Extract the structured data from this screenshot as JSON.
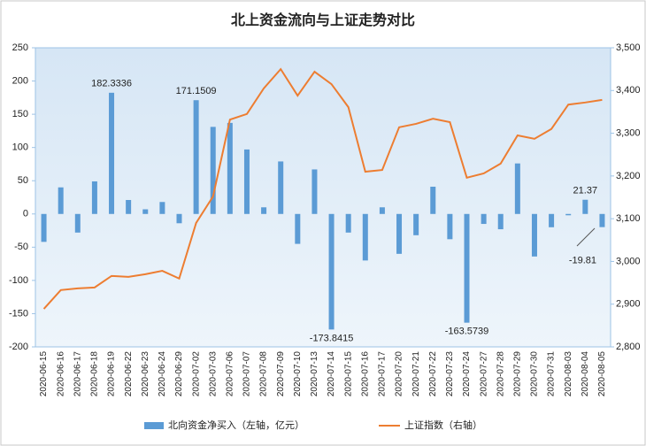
{
  "chart_data": {
    "type": "bar_line",
    "title": "北上资金流向与上证走势对比",
    "categories": [
      "2020-06-15",
      "2020-06-16",
      "2020-06-17",
      "2020-06-18",
      "2020-06-19",
      "2020-06-22",
      "2020-06-23",
      "2020-06-24",
      "2020-06-29",
      "2020-07-02",
      "2020-07-03",
      "2020-07-06",
      "2020-07-07",
      "2020-07-08",
      "2020-07-09",
      "2020-07-10",
      "2020-07-13",
      "2020-07-14",
      "2020-07-15",
      "2020-07-16",
      "2020-07-17",
      "2020-07-20",
      "2020-07-21",
      "2020-07-22",
      "2020-07-23",
      "2020-07-24",
      "2020-07-27",
      "2020-07-28",
      "2020-07-29",
      "2020-07-30",
      "2020-07-31",
      "2020-08-03",
      "2020-08-04",
      "2020-08-05"
    ],
    "series": [
      {
        "name": "北向资金净买入（左轴，亿元）",
        "type": "bar",
        "color": "#5b9bd5",
        "values": [
          -42,
          40,
          -28,
          49,
          182.3336,
          21,
          7,
          18,
          -14,
          171.1509,
          131,
          137,
          97,
          10,
          79,
          -45,
          67,
          -173.8415,
          -28,
          -70,
          10,
          -60,
          -32,
          41,
          -38,
          -163.5739,
          -15,
          -23,
          76,
          -64,
          -20,
          -2,
          21.37,
          -19.81
        ],
        "value_labels": [
          null,
          null,
          null,
          null,
          "182.3336",
          null,
          null,
          null,
          null,
          "171.1509",
          null,
          null,
          null,
          null,
          null,
          null,
          null,
          "-173.8415",
          null,
          null,
          null,
          null,
          null,
          null,
          null,
          "-163.5739",
          null,
          null,
          null,
          null,
          null,
          null,
          "21.37",
          "-19.81"
        ]
      },
      {
        "name": "上证指数（右轴）",
        "type": "line",
        "axis": "y2",
        "color": "#ed7d31",
        "values": [
          2889,
          2933,
          2937,
          2939,
          2966,
          2964,
          2970,
          2978,
          2960,
          3090,
          3152,
          3332,
          3345,
          3405,
          3450,
          3388,
          3444,
          3415,
          3361,
          3210,
          3214,
          3314,
          3322,
          3334,
          3326,
          3196,
          3206,
          3229,
          3295,
          3287,
          3310,
          3367,
          3372,
          3378
        ]
      }
    ],
    "ylim": [
      -200,
      250
    ],
    "yticks": [
      -200,
      -150,
      -100,
      -50,
      0,
      50,
      100,
      150,
      200,
      250
    ],
    "y2lim": [
      2800,
      3500
    ],
    "y2ticks": [
      {
        "value": 2800,
        "label": "2,800"
      },
      {
        "value": 2900,
        "label": "2,900"
      },
      {
        "value": 3000,
        "label": "3,000"
      },
      {
        "value": 3100,
        "label": "3,100"
      },
      {
        "value": 3200,
        "label": "3,200"
      },
      {
        "value": 3300,
        "label": "3,300"
      },
      {
        "value": 3400,
        "label": "3,400"
      },
      {
        "value": 3500,
        "label": "3,500"
      }
    ],
    "grid": false
  }
}
